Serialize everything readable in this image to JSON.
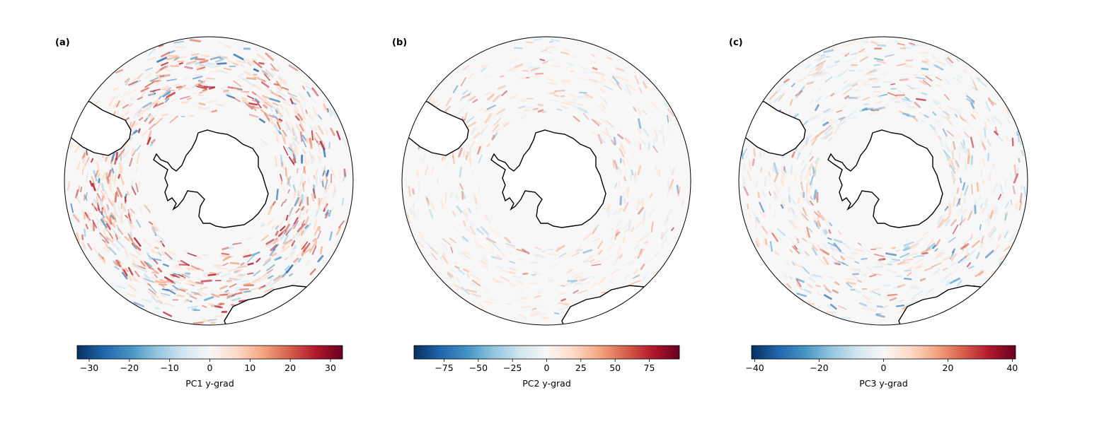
{
  "panels": [
    {
      "label": "(a)",
      "colorbar": {
        "label": "PC1 y-grad",
        "vmin": -33,
        "vmax": 33,
        "ticks": [
          -30,
          -20,
          -10,
          0,
          10,
          20,
          30
        ],
        "tick_labels": [
          "−30",
          "−20",
          "−10",
          "0",
          "10",
          "20",
          "30"
        ]
      },
      "field_strength": 1.0
    },
    {
      "label": "(b)",
      "colorbar": {
        "label": "PC2 y-grad",
        "vmin": -97,
        "vmax": 97,
        "ticks": [
          -75,
          -50,
          -25,
          0,
          25,
          50,
          75
        ],
        "tick_labels": [
          "−75",
          "−50",
          "−25",
          "0",
          "25",
          "50",
          "75"
        ]
      },
      "field_strength": 0.35
    },
    {
      "label": "(c)",
      "colorbar": {
        "label": "PC3 y-grad",
        "vmin": -41,
        "vmax": 41,
        "ticks": [
          -40,
          -20,
          0,
          20,
          40
        ],
        "tick_labels": [
          "−40",
          "−20",
          "0",
          "20",
          "40"
        ]
      },
      "field_strength": 0.6
    }
  ],
  "colormap": "RdBu_r",
  "colors": {
    "negative_dark": "#053061",
    "neutral": "#f7f7f7",
    "positive_dark": "#67001f",
    "land_outline": "#000000"
  }
}
